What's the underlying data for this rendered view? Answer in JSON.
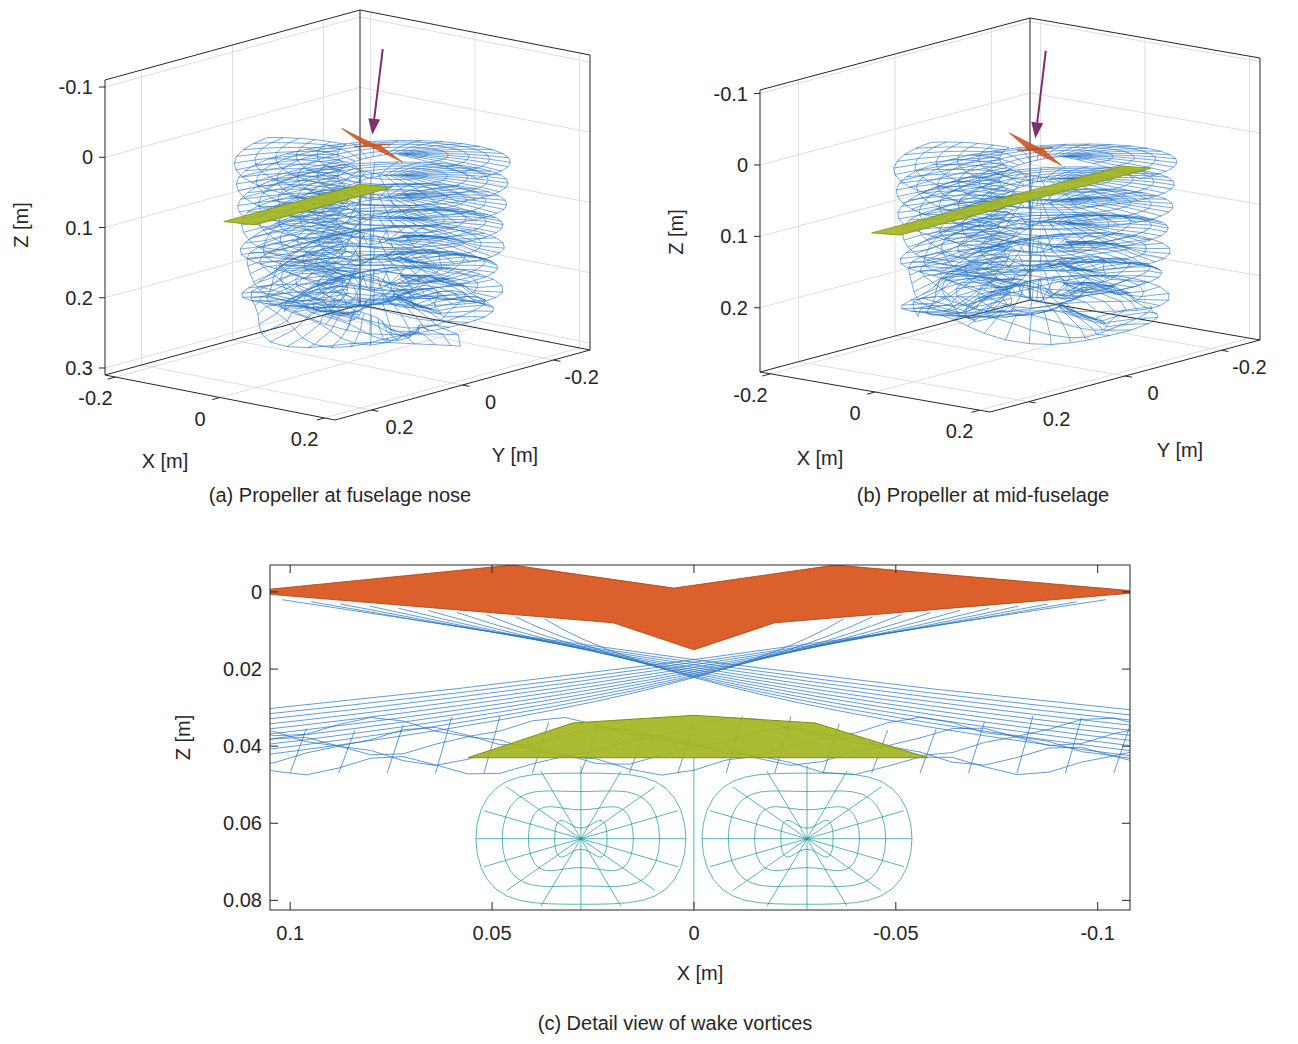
{
  "chart_data": [
    {
      "type": "3d-wireframe",
      "title": "(a) Propeller at fuselage nose",
      "x_label": "X [m]",
      "y_label": "Y [m]",
      "z_label": "Z [m]",
      "xlim": [
        -0.22,
        0.22
      ],
      "xticks": [
        -0.2,
        0,
        0.2
      ],
      "ylim": [
        -0.28,
        0.28
      ],
      "yticks": [
        -0.2,
        0,
        0.2
      ],
      "zlim": [
        -0.11,
        0.31
      ],
      "zticks": [
        -0.1,
        0,
        0.1,
        0.2,
        0.3
      ],
      "grid": true
    },
    {
      "type": "3d-wireframe",
      "title": "(b) Propeller at mid-fuselage",
      "x_label": "X [m]",
      "y_label": "Y [m]",
      "z_label": "Z [m]",
      "xlim": [
        -0.22,
        0.22
      ],
      "xticks": [
        -0.2,
        0,
        0.2
      ],
      "ylim": [
        -0.28,
        0.28
      ],
      "yticks": [
        -0.2,
        0,
        0.2
      ],
      "zlim": [
        -0.105,
        0.29
      ],
      "zticks": [
        -0.1,
        0,
        0.1,
        0.2
      ],
      "grid": true
    },
    {
      "type": "wireframe",
      "title": "(c) Detail view of wake vortices",
      "x_label": "X [m]",
      "y_label": "Z [m]",
      "xlim": [
        0.105,
        -0.108
      ],
      "xticks": [
        0.1,
        0.05,
        0,
        -0.05,
        -0.1
      ],
      "ylim": [
        -0.007,
        0.0825
      ],
      "yticks": [
        0,
        0.02,
        0.04,
        0.06,
        0.08
      ],
      "grid": false
    }
  ]
}
